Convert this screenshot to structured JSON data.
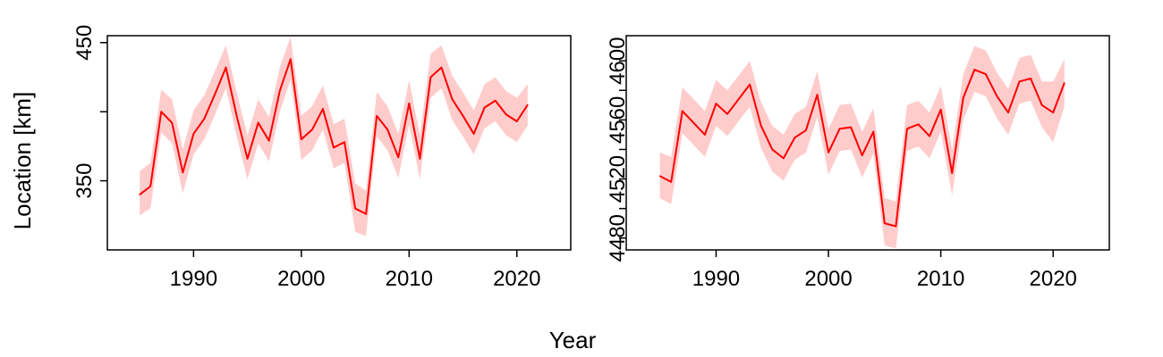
{
  "figure": {
    "ylabel": "Location [km]",
    "xlabel": "Year"
  },
  "chart_data": [
    {
      "type": "line",
      "title": "",
      "xlabel": "Year",
      "ylabel": "Location [km]",
      "xlim": [
        1982,
        2025
      ],
      "ylim": [
        300,
        455
      ],
      "xticks": [
        1990,
        2000,
        2010,
        2020
      ],
      "yticks": [
        350,
        400,
        450
      ],
      "ytick_labels": [
        "350",
        "",
        "450"
      ],
      "grid": false,
      "series": [
        {
          "line_color": "#ff0000",
          "band_color": "#ffcccc",
          "x": [
            1985,
            1986,
            1987,
            1988,
            1989,
            1990,
            1991,
            1992,
            1993,
            1994,
            1995,
            1996,
            1997,
            1998,
            1999,
            2000,
            2001,
            2002,
            2003,
            2004,
            2005,
            2006,
            2007,
            2008,
            2009,
            2010,
            2011,
            2012,
            2013,
            2014,
            2015,
            2016,
            2017,
            2018,
            2019,
            2020,
            2021
          ],
          "y": [
            340,
            346,
            400,
            392,
            356,
            384,
            395,
            413,
            432,
            397,
            366,
            392,
            379,
            415,
            438,
            380,
            387,
            402,
            374,
            378,
            330,
            326,
            397,
            387,
            367,
            406,
            366,
            425,
            432,
            409,
            397,
            384,
            403,
            408,
            398,
            393,
            405
          ],
          "lower": [
            325,
            330,
            385,
            377,
            341,
            369,
            380,
            398,
            417,
            382,
            351,
            377,
            364,
            400,
            423,
            365,
            372,
            387,
            359,
            363,
            313,
            310,
            382,
            372,
            352,
            391,
            351,
            410,
            417,
            394,
            382,
            369,
            388,
            393,
            383,
            378,
            390
          ],
          "upper": [
            357,
            363,
            416,
            409,
            373,
            401,
            412,
            430,
            448,
            414,
            383,
            409,
            396,
            432,
            454,
            397,
            404,
            419,
            391,
            395,
            348,
            343,
            414,
            404,
            384,
            423,
            383,
            442,
            448,
            426,
            414,
            401,
            420,
            425,
            415,
            410,
            420
          ]
        }
      ]
    },
    {
      "type": "line",
      "title": "",
      "xlabel": "Year",
      "ylabel": "",
      "xlim": [
        1982,
        2025
      ],
      "ylim": [
        4472,
        4617
      ],
      "xticks": [
        1990,
        2000,
        2010,
        2020
      ],
      "yticks": [
        4480,
        4500,
        4520,
        4540,
        4560,
        4580,
        4600
      ],
      "ytick_labels": [
        "4480",
        "",
        "4520",
        "",
        "4560",
        "",
        "4600"
      ],
      "grid": false,
      "series": [
        {
          "line_color": "#ff0000",
          "band_color": "#ffcccc",
          "x": [
            1985,
            1986,
            1987,
            1988,
            1989,
            1990,
            1991,
            1992,
            1993,
            1994,
            1995,
            1996,
            1997,
            1998,
            1999,
            2000,
            2001,
            2002,
            2003,
            2004,
            2005,
            2006,
            2007,
            2008,
            2009,
            2010,
            2011,
            2012,
            2013,
            2014,
            2015,
            2016,
            2017,
            2018,
            2019,
            2020,
            2021
          ],
          "y": [
            4522,
            4518,
            4566,
            4558,
            4550,
            4571,
            4564,
            4574,
            4584,
            4556,
            4540,
            4534,
            4548,
            4553,
            4577,
            4538,
            4554,
            4555,
            4536,
            4552,
            4490,
            4488,
            4554,
            4557,
            4549,
            4567,
            4524,
            4575,
            4594,
            4591,
            4576,
            4565,
            4586,
            4588,
            4570,
            4565,
            4585
          ],
          "lower": [
            4507,
            4503,
            4551,
            4543,
            4535,
            4556,
            4549,
            4559,
            4569,
            4541,
            4525,
            4519,
            4533,
            4538,
            4562,
            4523,
            4539,
            4540,
            4521,
            4537,
            4475,
            4473,
            4539,
            4542,
            4534,
            4552,
            4509,
            4560,
            4579,
            4576,
            4561,
            4550,
            4571,
            4573,
            4555,
            4545,
            4569
          ],
          "upper": [
            4538,
            4535,
            4582,
            4574,
            4566,
            4587,
            4580,
            4590,
            4600,
            4572,
            4556,
            4550,
            4564,
            4569,
            4593,
            4554,
            4570,
            4571,
            4552,
            4568,
            4507,
            4505,
            4570,
            4573,
            4565,
            4583,
            4540,
            4591,
            4610,
            4607,
            4592,
            4581,
            4602,
            4604,
            4586,
            4586,
            4601
          ]
        }
      ]
    }
  ]
}
